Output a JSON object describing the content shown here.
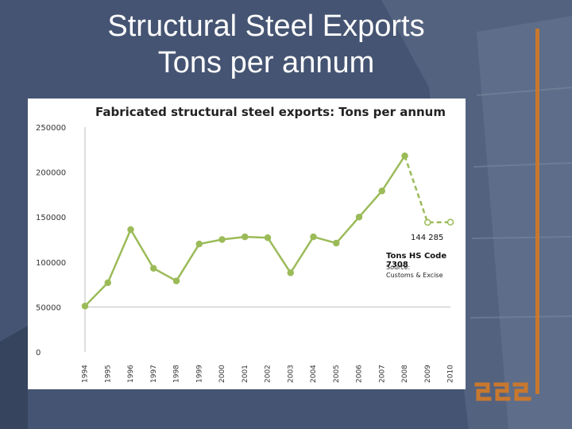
{
  "slide": {
    "title_line1": "Structural Steel Exports",
    "title_line2": "Tons per annum"
  },
  "chart_data": {
    "type": "line",
    "title": "Fabricated structural steel exports: Tons per annum",
    "xlabel": "",
    "ylabel": "",
    "ylim": [
      0,
      250000
    ],
    "yticks": [
      0,
      50000,
      100000,
      150000,
      200000,
      250000
    ],
    "ytick_labels": [
      "0",
      "50000",
      "100000",
      "150000",
      "200000",
      "250000"
    ],
    "categories": [
      "1994",
      "1995",
      "1996",
      "1997",
      "1998",
      "1999",
      "2000",
      "2001",
      "2002",
      "2003",
      "2004",
      "2005",
      "2006",
      "2007",
      "2008",
      "2009",
      "2010"
    ],
    "values": [
      51000,
      77000,
      136000,
      93000,
      79000,
      120000,
      125000,
      128000,
      127000,
      88000,
      128000,
      121000,
      150000,
      179000,
      218000,
      144000,
      144285
    ],
    "projected_from_index": 15,
    "grid": false,
    "line_color": "#9bbb59",
    "annotations": {
      "value_label": "144 285",
      "code_label": "Tons HS Code 7308",
      "source_label": "Source:",
      "source_name": "Customs & Excise"
    }
  },
  "colors": {
    "background": "#4a5a78",
    "accent": "#c8782e",
    "series": "#9bbb59"
  }
}
